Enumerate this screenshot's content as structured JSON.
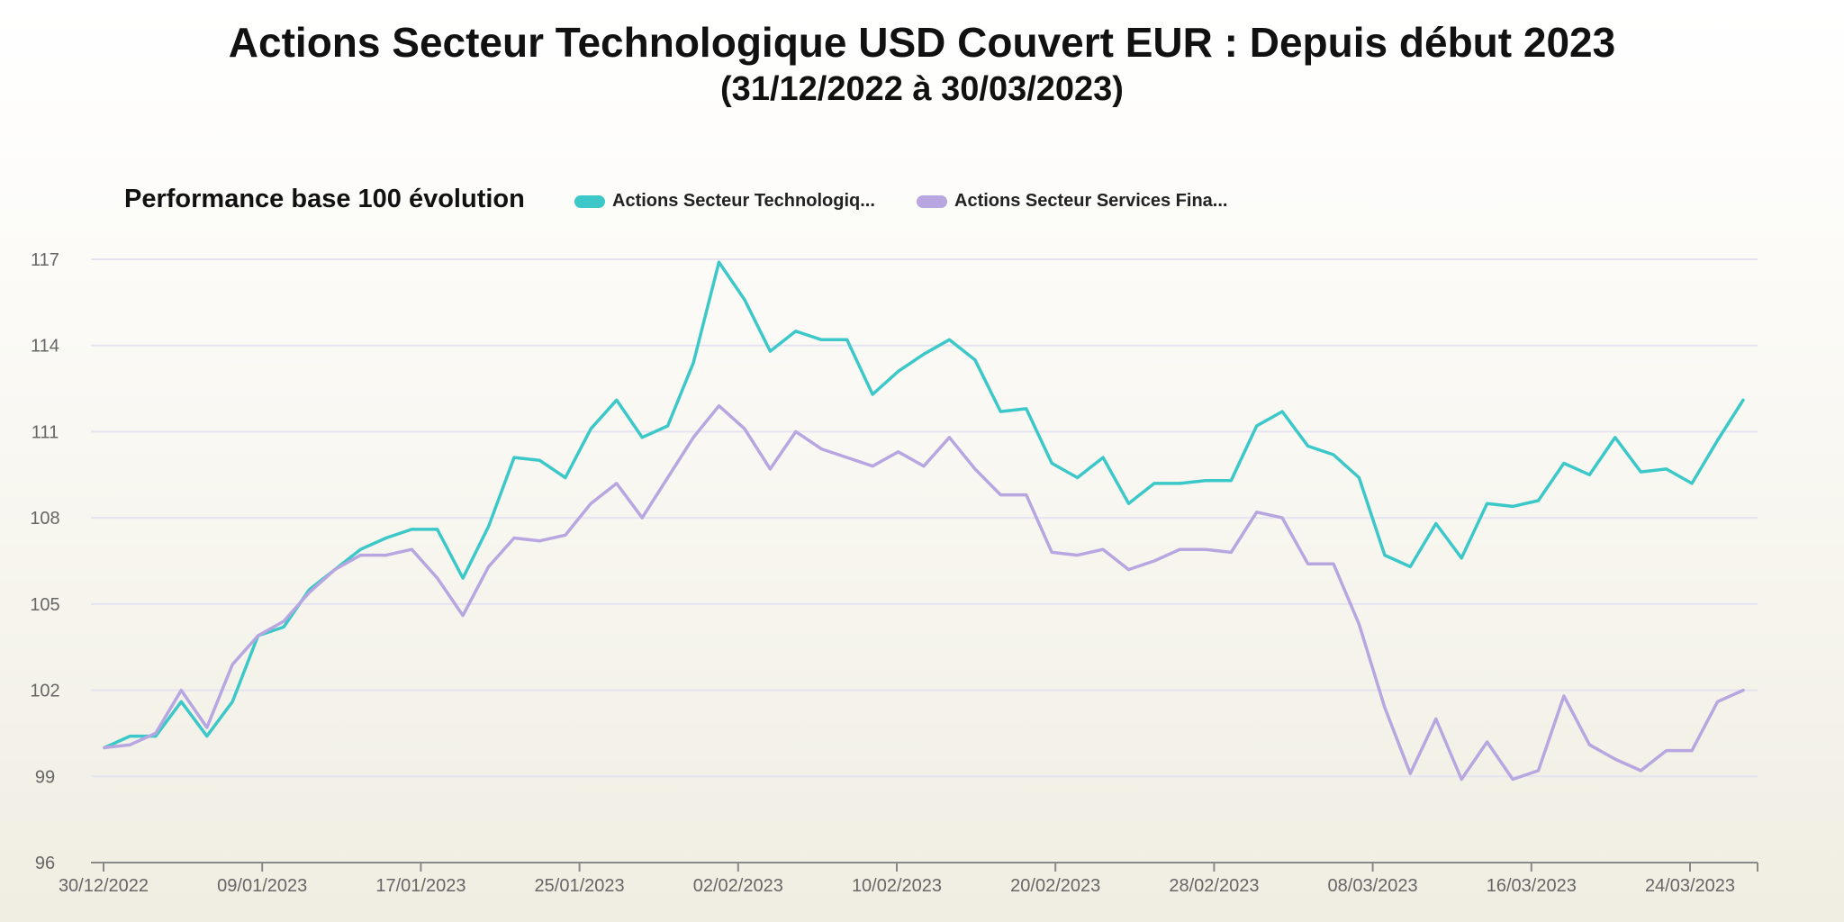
{
  "title": "Actions Secteur Technologique USD Couvert EUR : Depuis début 2023",
  "subtitle": "(31/12/2022 à 30/03/2023)",
  "colors": {
    "tech": "#3cc8c8",
    "fin": "#b7a6e0"
  },
  "chart_data": {
    "type": "line",
    "title": "Performance base 100 évolution",
    "ylim": [
      96,
      117
    ],
    "yticks": [
      "96",
      "99",
      "102",
      "105",
      "108",
      "111",
      "114",
      "117"
    ],
    "xticks": [
      "30/12/2022",
      "09/01/2023",
      "17/01/2023",
      "25/01/2023",
      "02/02/2023",
      "10/02/2023",
      "20/02/2023",
      "28/02/2023",
      "08/03/2023",
      "16/03/2023",
      "24/03/2023"
    ],
    "xlabel": "",
    "ylabel": "",
    "grid": true,
    "legend": "top",
    "series": [
      {
        "name": "Actions Secteur Technologiq...",
        "color": "#3cc8c8",
        "values": [
          100.0,
          100.4,
          100.4,
          101.6,
          100.4,
          101.6,
          103.9,
          104.2,
          105.5,
          106.2,
          106.9,
          107.3,
          107.6,
          107.6,
          105.9,
          107.7,
          110.1,
          110.0,
          109.4,
          111.1,
          112.1,
          110.8,
          111.2,
          113.4,
          116.9,
          115.6,
          113.8,
          114.5,
          114.2,
          114.2,
          112.3,
          113.1,
          113.7,
          114.2,
          113.5,
          111.7,
          111.8,
          109.9,
          109.4,
          110.1,
          108.5,
          109.2,
          109.2,
          109.3,
          109.3,
          111.2,
          111.7,
          110.5,
          110.2,
          109.4,
          106.7,
          106.3,
          107.8,
          106.6,
          108.5,
          108.4,
          108.6,
          109.9,
          109.5,
          110.8,
          109.6,
          109.7,
          109.2,
          110.7,
          112.1
        ]
      },
      {
        "name": "Actions Secteur Services Fina...",
        "color": "#b7a6e0",
        "values": [
          100.0,
          100.1,
          100.5,
          102.0,
          100.7,
          102.9,
          103.9,
          104.4,
          105.4,
          106.2,
          106.7,
          106.7,
          106.9,
          105.9,
          104.6,
          106.3,
          107.3,
          107.2,
          107.4,
          108.5,
          109.2,
          108.0,
          109.4,
          110.8,
          111.9,
          111.1,
          109.7,
          111.0,
          110.4,
          110.1,
          109.8,
          110.3,
          109.8,
          110.8,
          109.7,
          108.8,
          108.8,
          106.8,
          106.7,
          106.9,
          106.2,
          106.5,
          106.9,
          106.9,
          106.8,
          108.2,
          108.0,
          106.4,
          106.4,
          104.3,
          101.4,
          99.1,
          101.0,
          98.9,
          100.2,
          98.9,
          99.2,
          101.8,
          100.1,
          99.6,
          99.2,
          99.9,
          99.9,
          101.6,
          102.0
        ]
      }
    ]
  }
}
